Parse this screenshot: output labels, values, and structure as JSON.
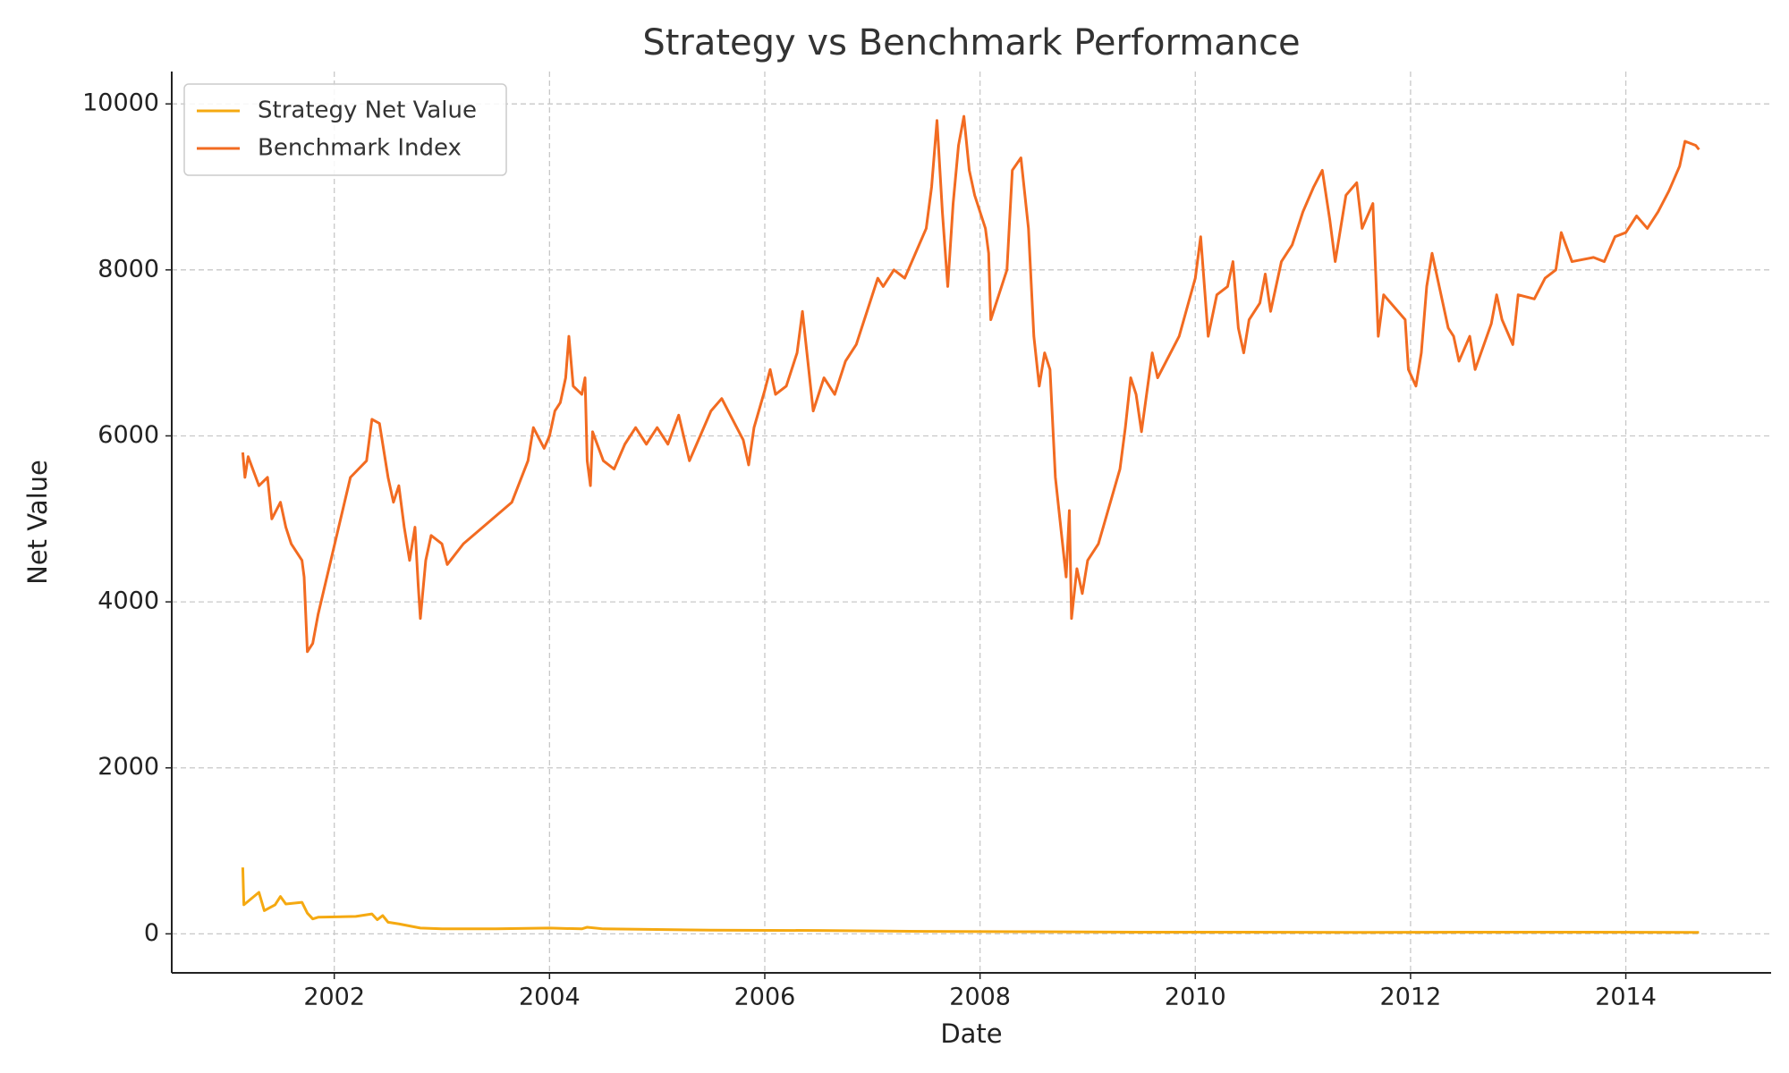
{
  "chart_data": {
    "type": "line",
    "title": "Strategy vs Benchmark Performance",
    "x_label": "Date",
    "y_label": "Net Value",
    "xlim": [
      2000.49,
      2015.35
    ],
    "xticks": [
      2002,
      2004,
      2006,
      2008,
      2010,
      2012,
      2014
    ],
    "ylim": [
      -470,
      10390
    ],
    "yticks": [
      0,
      2000,
      4000,
      6000,
      8000,
      10000
    ],
    "grid": true,
    "legend": "upper left",
    "series": [
      {
        "name": "Strategy Net Value",
        "color": "#f5a911",
        "x": [
          2001.15,
          2001.16,
          2001.3,
          2001.35,
          2001.45,
          2001.5,
          2001.55,
          2001.7,
          2001.75,
          2001.8,
          2001.85,
          2002.2,
          2002.35,
          2002.4,
          2002.45,
          2002.5,
          2002.6,
          2002.8,
          2003.0,
          2003.5,
          2004.0,
          2004.3,
          2004.35,
          2004.5,
          2005.5,
          2006.5,
          2007.5,
          2008.5,
          2009.5,
          2010.5,
          2011.5,
          2012.5,
          2013.5,
          2014.68
        ],
        "values": [
          800,
          350,
          500,
          280,
          350,
          450,
          360,
          380,
          250,
          180,
          200,
          210,
          240,
          170,
          220,
          140,
          120,
          70,
          60,
          60,
          70,
          60,
          80,
          60,
          45,
          40,
          30,
          25,
          20,
          20,
          18,
          20,
          20,
          18
        ]
      },
      {
        "name": "Benchmark Index",
        "color": "#f26b21",
        "x": [
          2001.15,
          2001.17,
          2001.2,
          2001.3,
          2001.38,
          2001.42,
          2001.5,
          2001.55,
          2001.6,
          2001.7,
          2001.72,
          2001.75,
          2001.8,
          2001.85,
          2002.15,
          2002.3,
          2002.35,
          2002.42,
          2002.5,
          2002.55,
          2002.6,
          2002.65,
          2002.7,
          2002.75,
          2002.78,
          2002.8,
          2002.85,
          2002.9,
          2003.0,
          2003.05,
          2003.2,
          2003.65,
          2003.8,
          2003.85,
          2003.95,
          2004.0,
          2004.05,
          2004.1,
          2004.15,
          2004.18,
          2004.22,
          2004.3,
          2004.33,
          2004.35,
          2004.38,
          2004.4,
          2004.5,
          2004.6,
          2004.7,
          2004.8,
          2004.9,
          2005.0,
          2005.1,
          2005.2,
          2005.3,
          2005.4,
          2005.5,
          2005.6,
          2005.7,
          2005.8,
          2005.85,
          2005.9,
          2006.0,
          2006.05,
          2006.1,
          2006.2,
          2006.3,
          2006.35,
          2006.4,
          2006.45,
          2006.55,
          2006.65,
          2006.75,
          2006.85,
          2006.95,
          2007.05,
          2007.1,
          2007.2,
          2007.3,
          2007.4,
          2007.5,
          2007.55,
          2007.6,
          2007.65,
          2007.7,
          2007.75,
          2007.8,
          2007.85,
          2007.9,
          2007.95,
          2008.05,
          2008.08,
          2008.1,
          2008.15,
          2008.25,
          2008.3,
          2008.38,
          2008.45,
          2008.5,
          2008.55,
          2008.6,
          2008.65,
          2008.7,
          2008.8,
          2008.83,
          2008.85,
          2008.9,
          2008.95,
          2009.0,
          2009.1,
          2009.3,
          2009.35,
          2009.4,
          2009.45,
          2009.5,
          2009.6,
          2009.65,
          2009.85,
          2010.0,
          2010.05,
          2010.12,
          2010.2,
          2010.3,
          2010.35,
          2010.4,
          2010.45,
          2010.5,
          2010.6,
          2010.65,
          2010.7,
          2010.8,
          2010.9,
          2011.0,
          2011.1,
          2011.18,
          2011.25,
          2011.3,
          2011.4,
          2011.5,
          2011.55,
          2011.65,
          2011.7,
          2011.75,
          2011.95,
          2011.98,
          2012.05,
          2012.1,
          2012.15,
          2012.2,
          2012.3,
          2012.35,
          2012.4,
          2012.45,
          2012.55,
          2012.6,
          2012.75,
          2012.8,
          2012.85,
          2012.95,
          2013.0,
          2013.15,
          2013.25,
          2013.35,
          2013.4,
          2013.5,
          2013.7,
          2013.8,
          2013.9,
          2014.0,
          2014.1,
          2014.2,
          2014.3,
          2014.4,
          2014.5,
          2014.55,
          2014.65,
          2014.68
        ],
        "values": [
          5800,
          5500,
          5750,
          5400,
          5500,
          5000,
          5200,
          4900,
          4700,
          4500,
          4300,
          3400,
          3500,
          3850,
          5500,
          5700,
          6200,
          6150,
          5500,
          5200,
          5400,
          4900,
          4500,
          4900,
          4200,
          3800,
          4500,
          4800,
          4700,
          4450,
          4700,
          5200,
          5700,
          6100,
          5850,
          6000,
          6300,
          6400,
          6700,
          7200,
          6600,
          6500,
          6700,
          5700,
          5400,
          6050,
          5700,
          5600,
          5900,
          6100,
          5900,
          6100,
          5900,
          6250,
          5700,
          6000,
          6300,
          6450,
          6200,
          5950,
          5650,
          6100,
          6550,
          6800,
          6500,
          6600,
          7000,
          7500,
          6900,
          6300,
          6700,
          6500,
          6900,
          7100,
          7500,
          7900,
          7800,
          8000,
          7900,
          8200,
          8500,
          9000,
          9800,
          8700,
          7800,
          8800,
          9500,
          9850,
          9200,
          8900,
          8500,
          8200,
          7400,
          7600,
          8000,
          9200,
          9350,
          8500,
          7200,
          6600,
          7000,
          6800,
          5500,
          4300,
          5100,
          3800,
          4400,
          4100,
          4500,
          4700,
          5600,
          6100,
          6700,
          6500,
          6050,
          7000,
          6700,
          7200,
          7900,
          8400,
          7200,
          7700,
          7800,
          8100,
          7300,
          7000,
          7400,
          7600,
          7950,
          7500,
          8100,
          8300,
          8700,
          9000,
          9200,
          8600,
          8100,
          8900,
          9050,
          8500,
          8800,
          7200,
          7700,
          7400,
          6800,
          6600,
          7000,
          7800,
          8200,
          7600,
          7300,
          7200,
          6900,
          7200,
          6800,
          7350,
          7700,
          7400,
          7100,
          7700,
          7650,
          7900,
          8000,
          8450,
          8100,
          8150,
          8100,
          8400,
          8450,
          8650,
          8500,
          8700,
          8950,
          9250,
          9550,
          9500,
          9450
        ]
      }
    ]
  }
}
